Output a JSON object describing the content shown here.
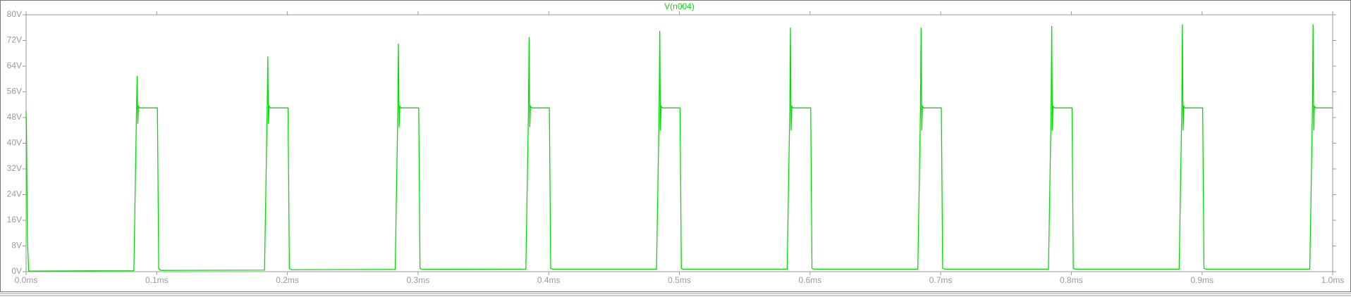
{
  "chart_data": {
    "type": "line",
    "series": [
      {
        "name": "V(n004)",
        "color": "#00e000",
        "values": [
          50,
          45,
          10,
          0.2,
          0.3,
          50,
          61,
          46,
          51.5,
          51,
          51,
          1,
          0.4,
          0.5,
          50,
          67,
          46,
          51.5,
          51,
          51,
          1,
          0.6,
          0.7,
          50,
          71,
          45,
          51.5,
          51,
          51,
          1,
          0.7,
          0.8,
          50,
          73,
          45,
          51.5,
          51,
          51,
          1,
          0.8,
          0.8,
          50,
          75,
          44,
          51.5,
          51,
          51,
          1,
          0.8,
          0.8,
          50,
          76,
          44,
          51.5,
          51,
          51,
          1,
          0.8,
          0.8,
          50,
          76,
          44,
          51.5,
          51,
          51,
          1,
          0.8,
          0.8,
          50,
          76.5,
          44,
          51.5,
          51,
          51,
          1,
          0.8,
          0.8,
          50,
          77,
          44,
          51.5,
          51,
          51,
          1,
          0.8,
          0.8,
          50,
          77,
          44,
          51.5,
          51,
          51
        ]
      }
    ],
    "x": [
      0,
      0.0003,
      0.001,
      0.002,
      0.0825,
      0.0845,
      0.085,
      0.0855,
      0.086,
      0.087,
      0.1005,
      0.1015,
      0.103,
      0.1825,
      0.1845,
      0.185,
      0.1855,
      0.186,
      0.187,
      0.2005,
      0.2015,
      0.203,
      0.2825,
      0.2845,
      0.285,
      0.2855,
      0.286,
      0.287,
      0.3005,
      0.3015,
      0.303,
      0.3825,
      0.3845,
      0.385,
      0.3855,
      0.386,
      0.387,
      0.4005,
      0.4015,
      0.403,
      0.4825,
      0.4845,
      0.485,
      0.4855,
      0.486,
      0.487,
      0.5005,
      0.5015,
      0.503,
      0.5825,
      0.5845,
      0.585,
      0.5855,
      0.586,
      0.587,
      0.6005,
      0.6015,
      0.603,
      0.6825,
      0.6845,
      0.685,
      0.6855,
      0.686,
      0.687,
      0.7005,
      0.7015,
      0.703,
      0.7825,
      0.7845,
      0.785,
      0.7855,
      0.786,
      0.787,
      0.8005,
      0.8015,
      0.803,
      0.8825,
      0.8845,
      0.885,
      0.8855,
      0.886,
      0.887,
      0.9005,
      0.9015,
      0.903,
      0.9825,
      0.9845,
      0.985,
      0.9855,
      0.986,
      0.987,
      1.0
    ],
    "xlim": [
      0,
      1.0
    ],
    "xticks": [
      {
        "value": 0,
        "label": "0.0ms"
      },
      {
        "value": 0.1,
        "label": "0.1ms"
      },
      {
        "value": 0.2,
        "label": "0.2ms"
      },
      {
        "value": 0.3,
        "label": "0.3ms"
      },
      {
        "value": 0.4,
        "label": "0.4ms"
      },
      {
        "value": 0.5,
        "label": "0.5ms"
      },
      {
        "value": 0.6,
        "label": "0.6ms"
      },
      {
        "value": 0.7,
        "label": "0.7ms"
      },
      {
        "value": 0.8,
        "label": "0.8ms"
      },
      {
        "value": 0.9,
        "label": "0.9ms"
      },
      {
        "value": 1.0,
        "label": "1.0ms"
      }
    ],
    "ylim": [
      0,
      80
    ],
    "yticks": [
      {
        "value": 0,
        "label": "0V"
      },
      {
        "value": 8,
        "label": "8V"
      },
      {
        "value": 16,
        "label": "16V"
      },
      {
        "value": 24,
        "label": "24V"
      },
      {
        "value": 32,
        "label": "32V"
      },
      {
        "value": 40,
        "label": "40V"
      },
      {
        "value": 48,
        "label": "48V"
      },
      {
        "value": 56,
        "label": "56V"
      },
      {
        "value": 64,
        "label": "64V"
      },
      {
        "value": 72,
        "label": "72V"
      },
      {
        "value": 80,
        "label": "80V"
      }
    ],
    "grid": false
  }
}
